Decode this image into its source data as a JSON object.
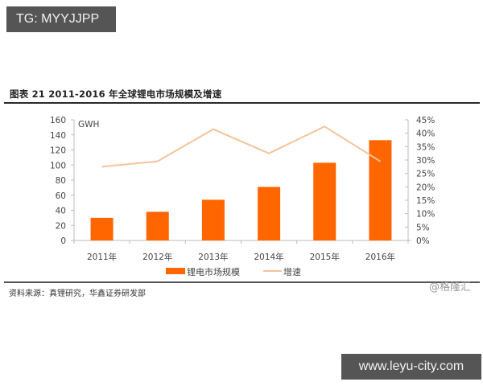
{
  "watermarks": {
    "top_left": "TG: MYYJJPP",
    "bottom_right": "www.leyu-city.com",
    "credit": "@格隆汇"
  },
  "figure": {
    "title": "图表 21  2011-2016 年全球锂电市场规模及增速",
    "source": "资料来源：真锂研究，华鑫证券研发部"
  },
  "colors": {
    "bar": "#FF6600",
    "line": "#F4C39A",
    "axis": "#BBBBBB",
    "rule": "#2A2A2A"
  },
  "chart_data": {
    "type": "bar+line",
    "title": "2011-2016 年全球锂电市场规模及增速",
    "categories": [
      "2011年",
      "2012年",
      "2013年",
      "2014年",
      "2015年",
      "2016年"
    ],
    "series": [
      {
        "name": "锂电市场规模",
        "type": "bar",
        "axis": "left",
        "unit": "GWH",
        "values": [
          30,
          38,
          54,
          71,
          103,
          133
        ]
      },
      {
        "name": "增速",
        "type": "line",
        "axis": "right",
        "unit": "%",
        "values": [
          27.5,
          29.5,
          41.5,
          32.5,
          42.5,
          29.5
        ]
      }
    ],
    "y_left": {
      "label": "GWH",
      "min": 0,
      "max": 160,
      "step": 20,
      "ticks": [
        "0",
        "20",
        "40",
        "60",
        "80",
        "100",
        "120",
        "140",
        "160"
      ]
    },
    "y_right": {
      "label": "",
      "min": 0,
      "max": 45,
      "step": 5,
      "ticks": [
        "0%",
        "5%",
        "10%",
        "15%",
        "20%",
        "25%",
        "30%",
        "35%",
        "40%",
        "45%"
      ]
    },
    "legend": {
      "position": "bottom",
      "entries": [
        "锂电市场规模",
        "增速"
      ]
    },
    "grid": false
  }
}
